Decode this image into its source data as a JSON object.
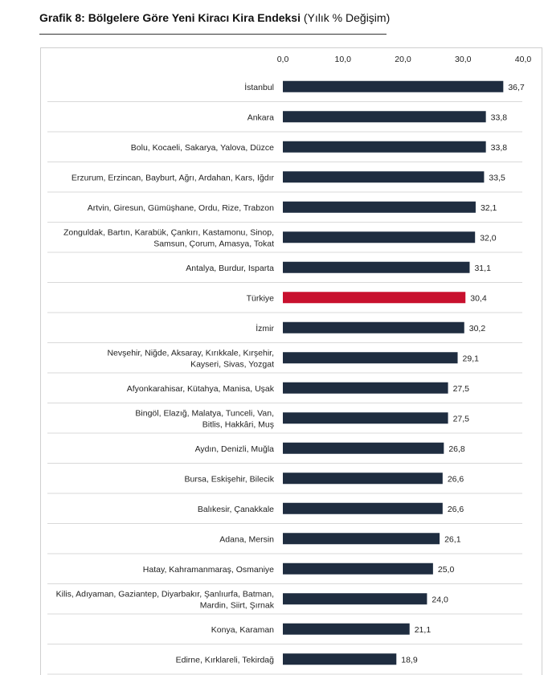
{
  "header": {
    "title_bold": "Grafik 8: Bölgelere Göre Yeni Kiracı Kira Endeksi",
    "title_rest": "(Yılık % Değişim)"
  },
  "colors": {
    "bar": "#1f2d40",
    "highlight": "#c8102e",
    "grid": "#d9d9d9"
  },
  "chart_data": {
    "type": "bar",
    "orientation": "horizontal",
    "title": "Grafik 8: Bölgelere Göre Yeni Kiracı Kira Endeksi (Yılık % Değişim)",
    "xlim": [
      0,
      40
    ],
    "ticks": [
      0,
      10,
      20,
      30,
      40
    ],
    "tick_labels": [
      "0,0",
      "10,0",
      "20,0",
      "30,0",
      "40,0"
    ],
    "axis_position": "top",
    "grid": "horizontal separators",
    "categories": [
      [
        "İstanbul"
      ],
      [
        "Ankara"
      ],
      [
        "Bolu, Kocaeli, Sakarya, Yalova, Düzce"
      ],
      [
        "Erzurum, Erzincan, Bayburt, Ağrı, Ardahan, Kars, Iğdır"
      ],
      [
        "Artvin, Giresun, Gümüşhane, Ordu, Rize, Trabzon"
      ],
      [
        "Zonguldak, Bartın, Karabük, Çankırı, Kastamonu, Sinop,",
        "Samsun, Çorum, Amasya, Tokat"
      ],
      [
        "Antalya, Burdur, Isparta"
      ],
      [
        "Türkiye"
      ],
      [
        "İzmir"
      ],
      [
        "Nevşehir, Niğde, Aksaray, Kırıkkale, Kırşehir,",
        "Kayseri, Sivas, Yozgat"
      ],
      [
        "Afyonkarahisar, Kütahya, Manisa, Uşak"
      ],
      [
        "Bingöl, Elazığ, Malatya, Tunceli, Van,",
        "Bitlis, Hakkâri, Muş"
      ],
      [
        "Aydın, Denizli, Muğla"
      ],
      [
        "Bursa, Eskişehir, Bilecik"
      ],
      [
        "Balıkesir, Çanakkale"
      ],
      [
        "Adana, Mersin"
      ],
      [
        "Hatay, Kahramanmaraş, Osmaniye"
      ],
      [
        "Kilis, Adıyaman, Gaziantep, Diyarbakır, Şanlıurfa, Batman,",
        "Mardin, Siirt, Şırnak"
      ],
      [
        "Konya, Karaman"
      ],
      [
        "Edirne, Kırklareli, Tekirdağ"
      ]
    ],
    "values": [
      36.7,
      33.8,
      33.8,
      33.5,
      32.1,
      32.0,
      31.1,
      30.4,
      30.2,
      29.1,
      27.5,
      27.5,
      26.8,
      26.6,
      26.6,
      26.1,
      25.0,
      24.0,
      21.1,
      18.9
    ],
    "value_labels": [
      "36,7",
      "33,8",
      "33,8",
      "33,5",
      "32,1",
      "32,0",
      "31,1",
      "30,4",
      "30,2",
      "29,1",
      "27,5",
      "27,5",
      "26,8",
      "26,6",
      "26,6",
      "26,1",
      "25,0",
      "24,0",
      "21,1",
      "18,9"
    ],
    "highlight_category": "Türkiye"
  }
}
